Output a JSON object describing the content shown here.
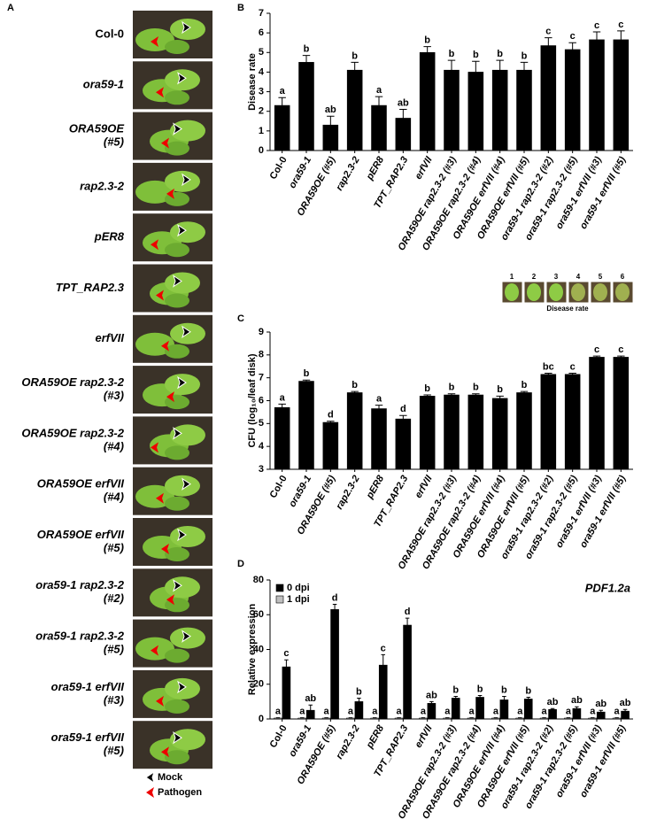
{
  "photo_panel": {
    "label": "A",
    "rows": [
      {
        "lines": [
          "Col-0"
        ]
      },
      {
        "lines": [
          "ora59-1"
        ]
      },
      {
        "lines": [
          "ORA59OE",
          "(#5)"
        ]
      },
      {
        "lines": [
          "rap2.3-2"
        ]
      },
      {
        "lines": [
          "pER8"
        ]
      },
      {
        "lines": [
          "TPT_RAP2.3"
        ]
      },
      {
        "lines": [
          "erfVII"
        ]
      },
      {
        "lines": [
          "ORA59OE rap2.3-2",
          "(#3)"
        ]
      },
      {
        "lines": [
          "ORA59OE rap2.3-2",
          "(#4)"
        ]
      },
      {
        "lines": [
          "ORA59OE erfVII",
          "(#4)"
        ]
      },
      {
        "lines": [
          "ORA59OE erfVII",
          "(#5)"
        ]
      },
      {
        "lines": [
          "ora59-1 rap2.3-2",
          "(#2)"
        ]
      },
      {
        "lines": [
          "ora59-1 rap2.3-2",
          "(#5)"
        ]
      },
      {
        "lines": [
          "ora59-1 erfVII",
          "(#3)"
        ]
      },
      {
        "lines": [
          "ora59-1 erfVII",
          "(#5)"
        ]
      }
    ],
    "legend": [
      "Mock",
      "Pathogen"
    ]
  },
  "chart_data": [
    {
      "type": "bar",
      "panel": "B",
      "ylabel": "Disease rate",
      "categories": [
        "Col-0",
        "ora59-1",
        "ORA59OE (#5)",
        "rap2.3-2",
        "pER8",
        "TPT_RAP2.3",
        "erfVII",
        "ORA59OE rap2.3-2 (#3)",
        "ORA59OE rap2.3-2 (#4)",
        "ORA59OE erfVII (#4)",
        "ORA59OE erfVII (#5)",
        "ora59-1 rap2.3-2 (#2)",
        "ora59-1 rap2.3-2 (#5)",
        "ora59-1 erfVII (#3)",
        "ora59-1 erfVII (#5)"
      ],
      "values": [
        2.3,
        4.5,
        1.3,
        4.1,
        2.3,
        1.65,
        5.0,
        4.1,
        4.0,
        4.1,
        4.1,
        5.35,
        5.15,
        5.65,
        5.65
      ],
      "errors": [
        0.4,
        0.35,
        0.45,
        0.4,
        0.45,
        0.45,
        0.3,
        0.5,
        0.55,
        0.5,
        0.4,
        0.4,
        0.35,
        0.4,
        0.45
      ],
      "letters": [
        "a",
        "b",
        "ab",
        "b",
        "a",
        "ab",
        "b",
        "b",
        "b",
        "b",
        "b",
        "c",
        "c",
        "c",
        "c"
      ],
      "color": "#000000",
      "ylim": [
        0,
        7
      ],
      "yticks": [
        0,
        1,
        2,
        3,
        4,
        5,
        6,
        7
      ],
      "inset": {
        "labels": [
          "1",
          "2",
          "3",
          "4",
          "5",
          "6"
        ],
        "caption": "Disease rate"
      }
    },
    {
      "type": "bar",
      "panel": "C",
      "ylabel": "CFU (log₁₀/leaf disk)",
      "categories": [
        "Col-0",
        "ora59-1",
        "ORA59OE (#5)",
        "rap2.3-2",
        "pER8",
        "TPT_RAP2.3",
        "erfVII",
        "ORA59OE rap2.3-2 (#3)",
        "ORA59OE rap2.3-2 (#4)",
        "ORA59OE erfVII (#4)",
        "ORA59OE erfVII (#5)",
        "ora59-1 rap2.3-2 (#2)",
        "ora59-1 rap2.3-2 (#5)",
        "ora59-1 erfVII (#3)",
        "ora59-1 erfVII (#5)"
      ],
      "values": [
        5.7,
        6.85,
        5.05,
        6.35,
        5.65,
        5.2,
        6.2,
        6.25,
        6.25,
        6.1,
        6.35,
        7.15,
        7.15,
        7.9,
        7.9
      ],
      "errors": [
        0.15,
        0.05,
        0.05,
        0.05,
        0.15,
        0.15,
        0.05,
        0.05,
        0.05,
        0.1,
        0.05,
        0.05,
        0.05,
        0.05,
        0.05
      ],
      "letters": [
        "a",
        "b",
        "d",
        "b",
        "a",
        "d",
        "b",
        "b",
        "b",
        "b",
        "b",
        "bc",
        "c",
        "c",
        "c"
      ],
      "color": "#000000",
      "ylim": [
        3,
        9
      ],
      "yticks": [
        3,
        4,
        5,
        6,
        7,
        8,
        9
      ]
    },
    {
      "type": "grouped-bar",
      "panel": "D",
      "title": "PDF1.2a",
      "ylabel": "Relative expression",
      "categories": [
        "Col-0",
        "ora59-1",
        "ORA59OE (#5)",
        "rap2.3-2",
        "pER8",
        "TPT_RAP2.3",
        "erfVII",
        "ORA59OE rap2.3-2 (#3)",
        "ORA59OE rap2.3-2 (#4)",
        "ORA59OE erfVII (#4)",
        "ORA59OE erfVII (#5)",
        "ora59-1 rap2.3-2 (#2)",
        "ora59-1 rap2.3-2 (#5)",
        "ora59-1 erfVII (#3)",
        "ora59-1 erfVII (#5)"
      ],
      "series": [
        {
          "name": "0 dpi",
          "color": "#000000",
          "values": [
            30,
            5,
            63,
            10,
            31,
            54,
            9,
            12,
            12.5,
            11,
            11.5,
            5.5,
            6,
            4,
            4.5
          ],
          "errors": [
            4,
            3,
            3,
            2,
            6,
            4,
            1,
            1,
            1,
            2,
            1,
            0.5,
            1,
            1,
            1
          ],
          "letters": [
            "c",
            "ab",
            "d",
            "b",
            "c",
            "d",
            "ab",
            "b",
            "b",
            "b",
            "b",
            "ab",
            "ab",
            "ab",
            "ab"
          ]
        },
        {
          "name": "1 dpi",
          "color": "#bfbfbf",
          "values": [
            0.5,
            0.5,
            0.5,
            0.5,
            0.5,
            0.5,
            0.5,
            0.5,
            0.5,
            0.5,
            0.5,
            0.5,
            0.5,
            0.5,
            0.5
          ],
          "errors": [
            0.2,
            0.2,
            0.2,
            0.2,
            0.2,
            0.2,
            0.2,
            0.2,
            0.2,
            0.2,
            0.2,
            0.2,
            0.2,
            0.2,
            0.2
          ],
          "letters": [
            "a",
            "a",
            "a",
            "a",
            "a",
            "a",
            "a",
            "a",
            "a",
            "a",
            "a",
            "a",
            "a",
            "a",
            "a"
          ]
        }
      ],
      "ylim": [
        0,
        80
      ],
      "yticks": [
        0,
        20,
        40,
        60,
        80
      ]
    }
  ]
}
